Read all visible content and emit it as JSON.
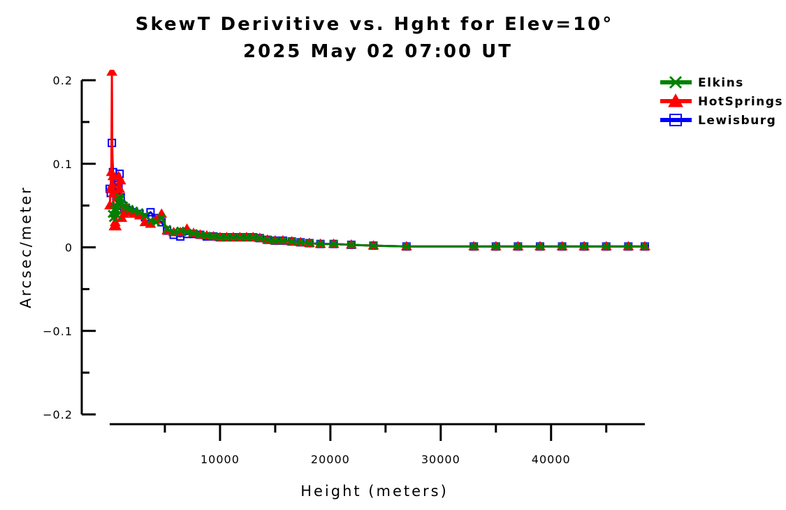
{
  "chart_data": {
    "type": "line",
    "title": "SkewT Derivitive vs. Hght for Elev=10°",
    "subtitle": "2025 May 02 07:00 UT",
    "xlabel": "Height (meters)",
    "ylabel": "Arcsec/meter",
    "xlim": [
      0,
      48500
    ],
    "ylim": [
      -0.2,
      0.2
    ],
    "x_ticks": [
      10000,
      20000,
      30000,
      40000
    ],
    "x_tick_labels": [
      "10000",
      "20000",
      "30000",
      "40000"
    ],
    "y_ticks": [
      -0.2,
      -0.1,
      0,
      0.1,
      0.2
    ],
    "y_tick_labels": [
      "−0.2",
      "−0.1",
      "0",
      "0.1",
      "0.2"
    ],
    "legend_position": "top-right",
    "series": [
      {
        "name": "Elkins",
        "color": "#008000",
        "marker": "x",
        "x": [
          200,
          300,
          400,
          500,
          600,
          700,
          800,
          900,
          1000,
          1100,
          1300,
          1500,
          1800,
          2200,
          2700,
          3200,
          3700,
          4200,
          4700,
          5200,
          5800,
          6400,
          7000,
          7600,
          8200,
          8800,
          9400,
          10000,
          10600,
          11200,
          11800,
          12400,
          13000,
          13600,
          14300,
          15000,
          15700,
          16500,
          17300,
          18100,
          19100,
          20300,
          21900,
          23900,
          26900,
          33000,
          35000,
          37000,
          39000,
          41000,
          43000,
          45000,
          47000,
          48500
        ],
        "y": [
          0.04,
          0.035,
          0.045,
          0.05,
          0.045,
          0.038,
          0.055,
          0.06,
          0.058,
          0.052,
          0.05,
          0.048,
          0.046,
          0.044,
          0.042,
          0.038,
          0.032,
          0.03,
          0.035,
          0.022,
          0.018,
          0.02,
          0.018,
          0.017,
          0.015,
          0.014,
          0.013,
          0.012,
          0.012,
          0.012,
          0.012,
          0.012,
          0.012,
          0.011,
          0.009,
          0.008,
          0.008,
          0.007,
          0.006,
          0.005,
          0.004,
          0.004,
          0.003,
          0.002,
          0.001,
          0.001,
          0.001,
          0.001,
          0.001,
          0.001,
          0.001,
          0.001,
          0.001,
          0.001
        ]
      },
      {
        "name": "HotSprings",
        "color": "#ff0000",
        "marker": "triangle",
        "x": [
          0,
          100,
          150,
          200,
          250,
          300,
          350,
          400,
          500,
          600,
          700,
          800,
          900,
          1000,
          1100,
          1300,
          1500,
          1800,
          2200,
          2700,
          3200,
          3700,
          4200,
          4700,
          5200,
          5800,
          6400,
          7000,
          7600,
          8200,
          8800,
          9400,
          10000,
          10600,
          11200,
          11800,
          12400,
          13000,
          13600,
          14300,
          15000,
          15700,
          16500,
          17300,
          18100,
          19100,
          20300,
          21900,
          23900,
          26900,
          33000,
          35000,
          37000,
          39000,
          41000,
          43000,
          45000,
          47000,
          48500
        ],
        "y": [
          0.05,
          0.07,
          0.09,
          0.21,
          0.075,
          0.085,
          0.065,
          0.025,
          0.03,
          0.025,
          0.06,
          0.085,
          0.07,
          0.08,
          0.035,
          0.04,
          0.048,
          0.042,
          0.04,
          0.038,
          0.03,
          0.028,
          0.033,
          0.04,
          0.02,
          0.018,
          0.018,
          0.022,
          0.017,
          0.015,
          0.014,
          0.013,
          0.012,
          0.012,
          0.012,
          0.012,
          0.012,
          0.012,
          0.011,
          0.009,
          0.008,
          0.008,
          0.007,
          0.006,
          0.005,
          0.004,
          0.004,
          0.003,
          0.002,
          0.001,
          0.001,
          0.001,
          0.001,
          0.001,
          0.001,
          0.001,
          0.001,
          0.001,
          0.001
        ]
      },
      {
        "name": "Lewisburg",
        "color": "#0000ff",
        "marker": "square",
        "x": [
          0,
          100,
          200,
          300,
          400,
          500,
          600,
          700,
          800,
          900,
          1000,
          1100,
          1300,
          1500,
          1800,
          2200,
          2700,
          3200,
          3700,
          4200,
          4700,
          5200,
          5800,
          6400,
          7000,
          7600,
          8200,
          8800,
          9400,
          10000,
          10600,
          11200,
          11800,
          12400,
          13000,
          13600,
          14300,
          15000,
          15700,
          16500,
          17300,
          18100,
          19100,
          20300,
          21900,
          23900,
          26900,
          33000,
          35000,
          37000,
          39000,
          41000,
          43000,
          45000,
          47000,
          48500
        ],
        "y": [
          0.07,
          0.065,
          0.125,
          0.09,
          0.08,
          0.07,
          0.055,
          0.062,
          0.075,
          0.088,
          0.06,
          0.05,
          0.047,
          0.045,
          0.044,
          0.042,
          0.04,
          0.036,
          0.042,
          0.035,
          0.03,
          0.02,
          0.015,
          0.013,
          0.016,
          0.016,
          0.015,
          0.013,
          0.013,
          0.012,
          0.012,
          0.012,
          0.012,
          0.012,
          0.012,
          0.011,
          0.009,
          0.008,
          0.008,
          0.007,
          0.006,
          0.005,
          0.004,
          0.004,
          0.003,
          0.002,
          0.001,
          0.001,
          0.001,
          0.001,
          0.001,
          0.001,
          0.001,
          0.001,
          0.001,
          0.001
        ]
      }
    ]
  }
}
